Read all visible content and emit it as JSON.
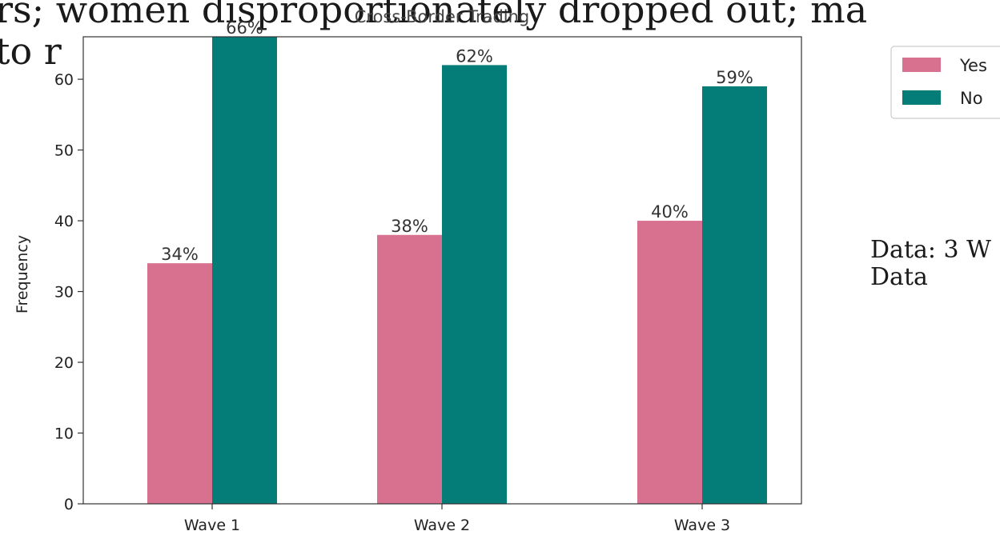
{
  "background_text": {
    "line1": "rs; women disproportionately dropped out; ma",
    "line2": "to r"
  },
  "side_text": {
    "line1": "Data: 3 W",
    "line2": "Data"
  },
  "chart_data": {
    "type": "bar",
    "title": "Cross-Border Trading",
    "xlabel": "",
    "ylabel": "Frequency",
    "categories": [
      "Wave 1",
      "Wave 2",
      "Wave 3"
    ],
    "series": [
      {
        "name": "Yes",
        "values": [
          34,
          38,
          40
        ],
        "labels": [
          "34%",
          "38%",
          "40%"
        ],
        "color": "#d8708f"
      },
      {
        "name": "No",
        "values": [
          66,
          62,
          59
        ],
        "labels": [
          "66%",
          "62%",
          "59%"
        ],
        "color": "#047c78"
      }
    ],
    "ylim": [
      0,
      66
    ],
    "yticks": [
      0,
      10,
      20,
      30,
      40,
      50,
      60
    ],
    "grid": false,
    "legend_position": "top-right"
  }
}
